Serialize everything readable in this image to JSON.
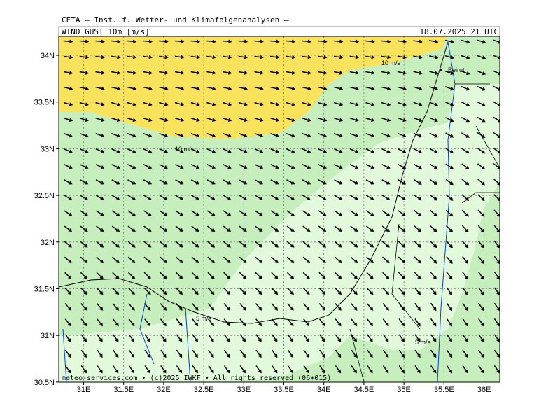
{
  "header": "CETA — Inst. f. Wetter- und Klimafolgenanalysen —",
  "title": "WIND_GUST_10m_[m/s]",
  "valid_time": "18.07.2025 21 UTC",
  "lon_labels": [
    "31E",
    "31.5E",
    "32E",
    "32.5E",
    "33E",
    "33.5E",
    "34E",
    "34.5E",
    "35E",
    "35.5E",
    "36E"
  ],
  "lat_labels": [
    "34N",
    "33.5N",
    "33N",
    "32.5N",
    "32N",
    "31.5N",
    "31N",
    "30.5N"
  ],
  "contour_labels": [
    {
      "text": "10 m/s"
    },
    {
      "text": "10 m/s"
    },
    {
      "text": "5 m/s"
    },
    {
      "text": "5 m/s"
    }
  ],
  "places": [
    "Beirut"
  ],
  "footer": "meteo-services.com • (c)2025 IWKF • All rights reserved (06+015)"
}
